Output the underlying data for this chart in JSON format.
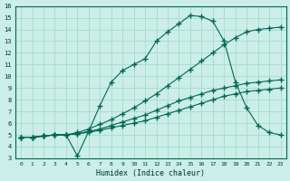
{
  "xlabel": "Humidex (Indice chaleur)",
  "bg_color": "#cceee8",
  "grid_color": "#aaddcc",
  "line_color": "#006655",
  "xlim": [
    -0.5,
    23.5
  ],
  "ylim": [
    3,
    16
  ],
  "xticks": [
    0,
    1,
    2,
    3,
    4,
    5,
    6,
    7,
    8,
    9,
    10,
    11,
    12,
    13,
    14,
    15,
    16,
    17,
    18,
    19,
    20,
    21,
    22,
    23
  ],
  "yticks": [
    3,
    4,
    5,
    6,
    7,
    8,
    9,
    10,
    11,
    12,
    13,
    14,
    15,
    16
  ],
  "line1_x": [
    0,
    1,
    2,
    3,
    4,
    5,
    6,
    7,
    8,
    9,
    10,
    11,
    12,
    13,
    14,
    15,
    16,
    17,
    18,
    19,
    20,
    21,
    22,
    23
  ],
  "line1_y": [
    4.8,
    4.8,
    4.9,
    5.0,
    5.0,
    5.1,
    5.2,
    5.4,
    5.6,
    5.8,
    6.0,
    6.2,
    6.5,
    6.8,
    7.1,
    7.4,
    7.7,
    8.0,
    8.3,
    8.5,
    8.7,
    8.8,
    8.9,
    9.0
  ],
  "line2_x": [
    0,
    1,
    2,
    3,
    4,
    5,
    6,
    7,
    8,
    9,
    10,
    11,
    12,
    13,
    14,
    15,
    16,
    17,
    18,
    19,
    20,
    21,
    22,
    23
  ],
  "line2_y": [
    4.8,
    4.8,
    4.9,
    5.0,
    5.0,
    5.1,
    5.3,
    5.5,
    5.8,
    6.1,
    6.4,
    6.7,
    7.1,
    7.5,
    7.9,
    8.2,
    8.5,
    8.8,
    9.0,
    9.2,
    9.4,
    9.5,
    9.6,
    9.7
  ],
  "line3_x": [
    0,
    1,
    2,
    3,
    4,
    5,
    6,
    7,
    8,
    9,
    10,
    11,
    12,
    13,
    14,
    15,
    16,
    17,
    18,
    19,
    20,
    21,
    22,
    23
  ],
  "line3_y": [
    4.8,
    4.8,
    4.9,
    5.0,
    5.0,
    5.2,
    5.5,
    5.9,
    6.3,
    6.8,
    7.3,
    7.9,
    8.5,
    9.2,
    9.9,
    10.6,
    11.3,
    12.0,
    12.7,
    13.3,
    13.8,
    14.0,
    14.1,
    14.2
  ],
  "line4_x": [
    0,
    1,
    2,
    3,
    4,
    5,
    6,
    7,
    8,
    9,
    10,
    11,
    12,
    13,
    14,
    15,
    16,
    17,
    18,
    19,
    20,
    21,
    22,
    23
  ],
  "line4_y": [
    4.8,
    4.8,
    4.9,
    5.0,
    5.0,
    3.2,
    5.3,
    7.5,
    9.5,
    10.5,
    11.0,
    11.5,
    13.0,
    13.8,
    14.5,
    15.2,
    15.1,
    14.7,
    13.0,
    9.5,
    7.3,
    5.8,
    5.2,
    5.0
  ]
}
